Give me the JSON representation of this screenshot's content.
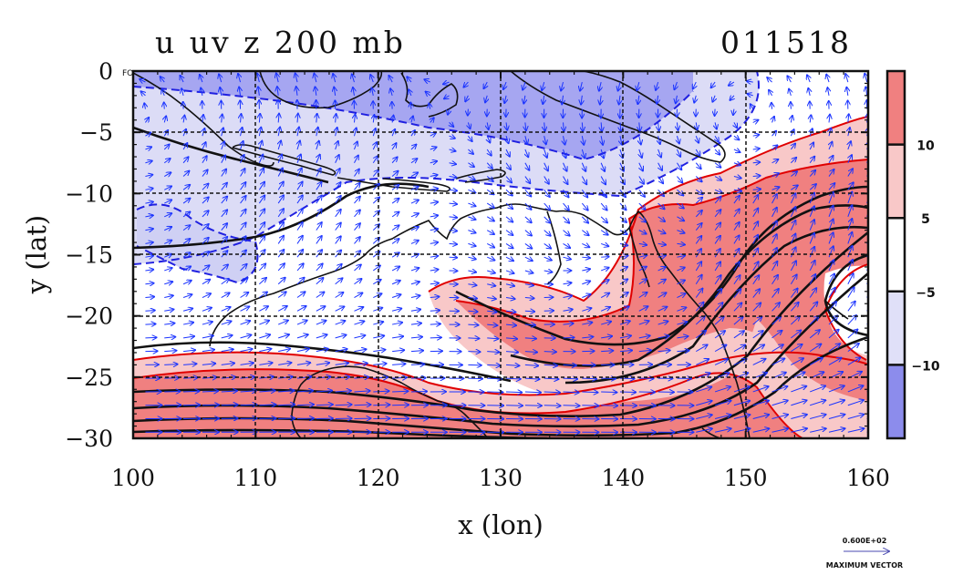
{
  "chart_data": {
    "type": "heatmap",
    "title_left": "u uv z 200 mb",
    "title_right": "011518",
    "xlabel": "x (lon)",
    "ylabel": "y (lat)",
    "xlim": [
      100,
      160
    ],
    "ylim": [
      -30,
      0
    ],
    "x_ticks": [
      100,
      110,
      120,
      130,
      140,
      150,
      160
    ],
    "y_ticks": [
      0,
      -5,
      -10,
      -15,
      -20,
      -25,
      -30
    ],
    "y_tick_labels": [
      "0",
      "−5",
      "−10",
      "−15",
      "−20",
      "−25",
      "−30"
    ],
    "grid": true,
    "colorbar": {
      "levels": [
        10,
        5,
        -5,
        -10
      ],
      "labels": [
        "10",
        "5",
        "−5",
        "−10"
      ],
      "colors": [
        "#f08080",
        "#f8c8c8",
        "#ffffff",
        "#e0e0f8",
        "#8c8cec"
      ]
    },
    "shading_colors": {
      "strong_positive": "#f08080",
      "weak_positive": "#f8c8c8",
      "weak_negative": "#e0e0f8",
      "strong_negative": "#9c9cef"
    },
    "contour_color": "#111111",
    "positive_contour_color": "#e00000",
    "negative_contour_color": "#2020e0",
    "vector_color": "#1a33ff",
    "max_vector_label": "0.600E+02",
    "max_vector_caption": "MAXIMUM VECTOR",
    "fo_label": "FO"
  }
}
